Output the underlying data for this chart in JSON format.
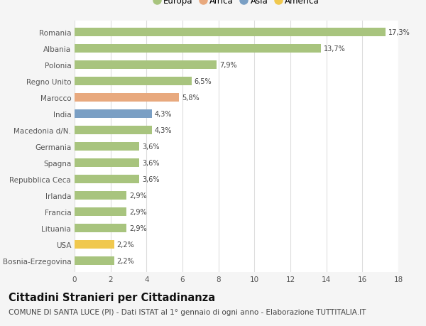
{
  "countries": [
    "Romania",
    "Albania",
    "Polonia",
    "Regno Unito",
    "Marocco",
    "India",
    "Macedonia d/N.",
    "Germania",
    "Spagna",
    "Repubblica Ceca",
    "Irlanda",
    "Francia",
    "Lituania",
    "USA",
    "Bosnia-Erzegovina"
  ],
  "values": [
    17.3,
    13.7,
    7.9,
    6.5,
    5.8,
    4.3,
    4.3,
    3.6,
    3.6,
    3.6,
    2.9,
    2.9,
    2.9,
    2.2,
    2.2
  ],
  "labels": [
    "17,3%",
    "13,7%",
    "7,9%",
    "6,5%",
    "5,8%",
    "4,3%",
    "4,3%",
    "3,6%",
    "3,6%",
    "3,6%",
    "2,9%",
    "2,9%",
    "2,9%",
    "2,2%",
    "2,2%"
  ],
  "continents": [
    "Europa",
    "Europa",
    "Europa",
    "Europa",
    "Africa",
    "Asia",
    "Europa",
    "Europa",
    "Europa",
    "Europa",
    "Europa",
    "Europa",
    "Europa",
    "America",
    "Europa"
  ],
  "continent_colors": {
    "Europa": "#a8c47e",
    "Africa": "#e8a97e",
    "Asia": "#7a9fc4",
    "America": "#f0c84e"
  },
  "legend_order": [
    "Europa",
    "Africa",
    "Asia",
    "America"
  ],
  "background_color": "#f5f5f5",
  "plot_bg_color": "#ffffff",
  "grid_color": "#dddddd",
  "xlim": [
    0,
    18
  ],
  "xticks": [
    0,
    2,
    4,
    6,
    8,
    10,
    12,
    14,
    16,
    18
  ],
  "title": "Cittadini Stranieri per Cittadinanza",
  "subtitle": "COMUNE DI SANTA LUCE (PI) - Dati ISTAT al 1° gennaio di ogni anno - Elaborazione TUTTITALIA.IT",
  "title_fontsize": 10.5,
  "subtitle_fontsize": 7.5,
  "bar_height": 0.55
}
